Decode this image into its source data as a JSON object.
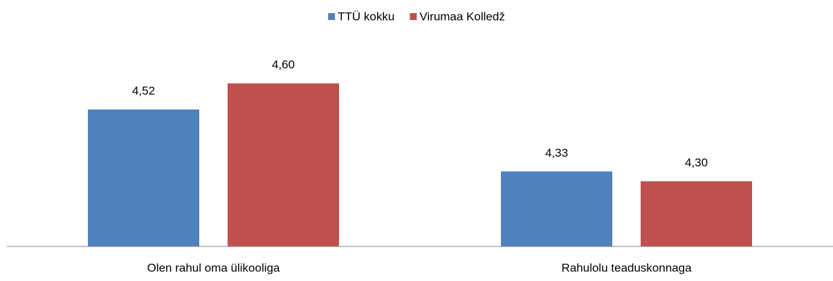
{
  "chart_data": {
    "type": "bar",
    "categories": [
      "Olen rahul oma ülikooliga",
      "Rahulolu teaduskonnaga"
    ],
    "series": [
      {
        "name": "TTÜ kokku",
        "color": "#4f81bd",
        "values": [
          4.52,
          4.33
        ],
        "value_labels": [
          "4,52",
          "4,33"
        ]
      },
      {
        "name": "Virumaa Kolledž",
        "color": "#c0504d",
        "values": [
          4.6,
          4.3
        ],
        "value_labels": [
          "4,60",
          "4,30"
        ]
      }
    ],
    "ylim": [
      4.1,
      4.7
    ],
    "legend": "top"
  }
}
